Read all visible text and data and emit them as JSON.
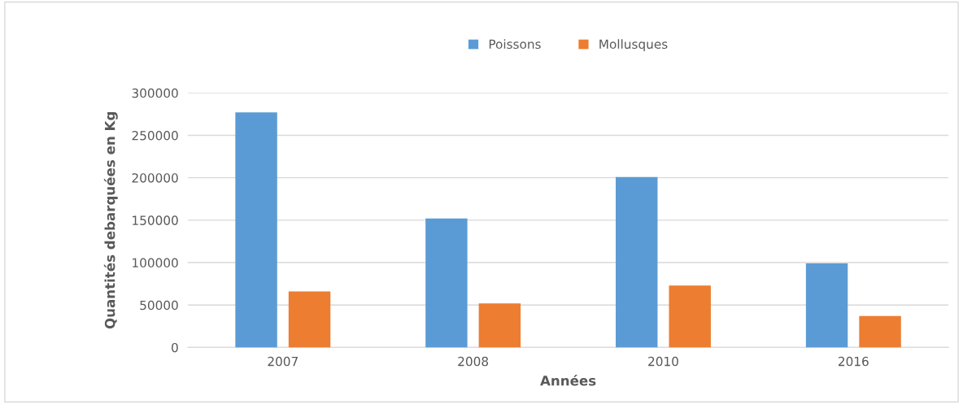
{
  "chart_data": {
    "type": "bar",
    "xlabel": "Années",
    "ylabel": "Quantités debarquées en Kg",
    "categories": [
      "2007",
      "2008",
      "2010",
      "2016"
    ],
    "series": [
      {
        "name": "Poissons",
        "color": "#5b9bd5",
        "values": [
          277000,
          152000,
          201000,
          99000
        ]
      },
      {
        "name": "Mollusques",
        "color": "#ed7d31",
        "values": [
          66000,
          52000,
          73000,
          37000
        ]
      }
    ],
    "ylim": [
      0,
      300000
    ],
    "yticks": [
      0,
      50000,
      100000,
      150000,
      200000,
      250000,
      300000
    ],
    "grid": "y",
    "legend": "top"
  }
}
